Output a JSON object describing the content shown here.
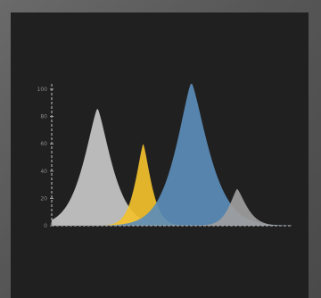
{
  "chart_data": {
    "type": "area",
    "ylim": [
      0,
      100
    ],
    "yticks": [
      0,
      20,
      40,
      60,
      80,
      100
    ],
    "xlim": [
      0,
      100
    ],
    "grid": false,
    "series": [
      {
        "color": "#c8c8c8",
        "peak_x": 19,
        "peak_y": 86,
        "width_left": 9,
        "width_right": 9
      },
      {
        "color": "#f2c12e",
        "peak_x": 38,
        "peak_y": 60,
        "width_left": 5,
        "width_right": 5
      },
      {
        "color": "#5b8db8",
        "peak_x": 58,
        "peak_y": 105,
        "width_left": 10,
        "width_right": 11
      },
      {
        "color": "#9e9e9e",
        "peak_x": 77,
        "peak_y": 27,
        "width_left": 5,
        "width_right": 6
      }
    ],
    "axis_color": "#a8a8a8"
  }
}
